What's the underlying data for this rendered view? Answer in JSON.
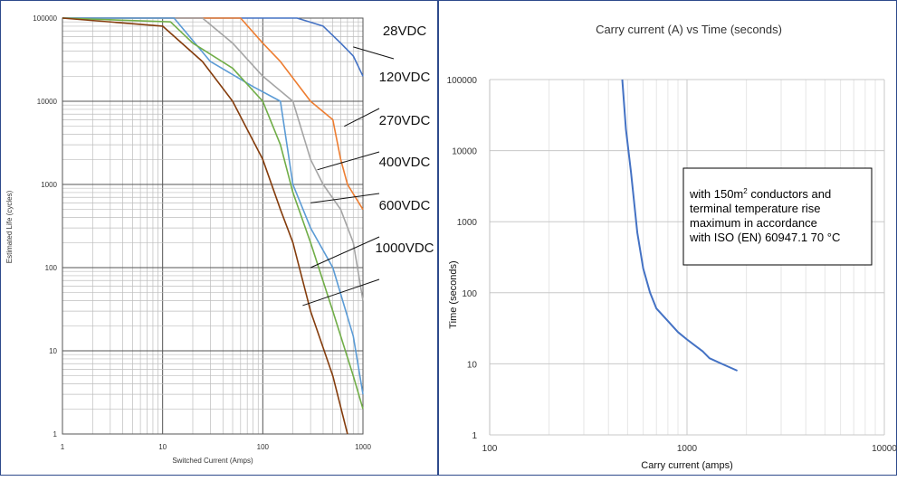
{
  "chart_data": [
    {
      "type": "line",
      "title": "",
      "xlabel": "Switched Current (Amps)",
      "ylabel": "Estimated Life (cycles)",
      "x_scale": "log",
      "y_scale": "log",
      "xlim": [
        1,
        1000
      ],
      "ylim": [
        1,
        100000
      ],
      "x_ticks": [
        "1",
        "10",
        "100",
        "1000"
      ],
      "y_ticks": [
        "1",
        "10",
        "100",
        "1000",
        "10000",
        "100000"
      ],
      "grid": true,
      "series": [
        {
          "name": "28VDC",
          "color": "#4472c4",
          "points": [
            [
              1,
              100000
            ],
            [
              220,
              100000
            ],
            [
              400,
              80000
            ],
            [
              600,
              50000
            ],
            [
              800,
              35000
            ],
            [
              1000,
              20000
            ]
          ]
        },
        {
          "name": "120VDC",
          "color": "#ed7d31",
          "points": [
            [
              1,
              100000
            ],
            [
              60,
              100000
            ],
            [
              100,
              50000
            ],
            [
              150,
              30000
            ],
            [
              300,
              10000
            ],
            [
              500,
              6000
            ],
            [
              600,
              2000
            ],
            [
              700,
              1000
            ],
            [
              1000,
              500
            ]
          ]
        },
        {
          "name": "270VDC",
          "color": "#a5a5a5",
          "points": [
            [
              1,
              100000
            ],
            [
              25,
              100000
            ],
            [
              50,
              50000
            ],
            [
              100,
              20000
            ],
            [
              200,
              10000
            ],
            [
              300,
              2000
            ],
            [
              400,
              1000
            ],
            [
              600,
              500
            ],
            [
              800,
              200
            ],
            [
              1000,
              40
            ]
          ]
        },
        {
          "name": "400VDC",
          "color": "#5b9bd5",
          "points": [
            [
              1,
              100000
            ],
            [
              13,
              100000
            ],
            [
              30,
              30000
            ],
            [
              80,
              15000
            ],
            [
              150,
              10000
            ],
            [
              200,
              1000
            ],
            [
              300,
              300
            ],
            [
              500,
              100
            ],
            [
              800,
              15
            ],
            [
              1000,
              3
            ]
          ]
        },
        {
          "name": "600VDC",
          "color": "#70ad47",
          "points": [
            [
              1,
              100000
            ],
            [
              12,
              90000
            ],
            [
              20,
              50000
            ],
            [
              50,
              25000
            ],
            [
              100,
              10000
            ],
            [
              150,
              3000
            ],
            [
              200,
              800
            ],
            [
              300,
              200
            ],
            [
              500,
              30
            ],
            [
              800,
              5
            ],
            [
              1000,
              2
            ]
          ]
        },
        {
          "name": "1000VDC",
          "color": "#843c0c",
          "points": [
            [
              1,
              100000
            ],
            [
              10,
              80000
            ],
            [
              25,
              30000
            ],
            [
              50,
              10000
            ],
            [
              100,
              2000
            ],
            [
              150,
              500
            ],
            [
              200,
              200
            ],
            [
              300,
              30
            ],
            [
              500,
              5
            ],
            [
              700,
              1
            ]
          ]
        }
      ]
    },
    {
      "type": "line",
      "title": "Carry current (A) vs Time (seconds)",
      "xlabel": "Carry current (amps)",
      "ylabel": "Time (seconds)",
      "x_scale": "log",
      "y_scale": "log",
      "xlim": [
        100,
        10000
      ],
      "ylim": [
        1,
        100000
      ],
      "x_ticks": [
        "100",
        "1000",
        "10000"
      ],
      "y_ticks": [
        "1",
        "10",
        "100",
        "1000",
        "10000",
        "100000"
      ],
      "grid": true,
      "series": [
        {
          "color": "#4472c4",
          "points": [
            [
              470,
              100000
            ],
            [
              490,
              20000
            ],
            [
              520,
              5000
            ],
            [
              560,
              700
            ],
            [
              600,
              220
            ],
            [
              650,
              100
            ],
            [
              700,
              60
            ],
            [
              800,
              40
            ],
            [
              900,
              28
            ],
            [
              1000,
              22
            ],
            [
              1200,
              15
            ],
            [
              1300,
              12
            ],
            [
              1500,
              10
            ],
            [
              1800,
              8
            ]
          ]
        }
      ],
      "annotation": {
        "lines": [
          "with 150m² conductors and",
          "terminal temperature rise",
          "maximum in accordance",
          "with ISO (EN) 60947.1 70 °C"
        ]
      }
    }
  ],
  "colors": {
    "frame": "#2e4a8c"
  }
}
